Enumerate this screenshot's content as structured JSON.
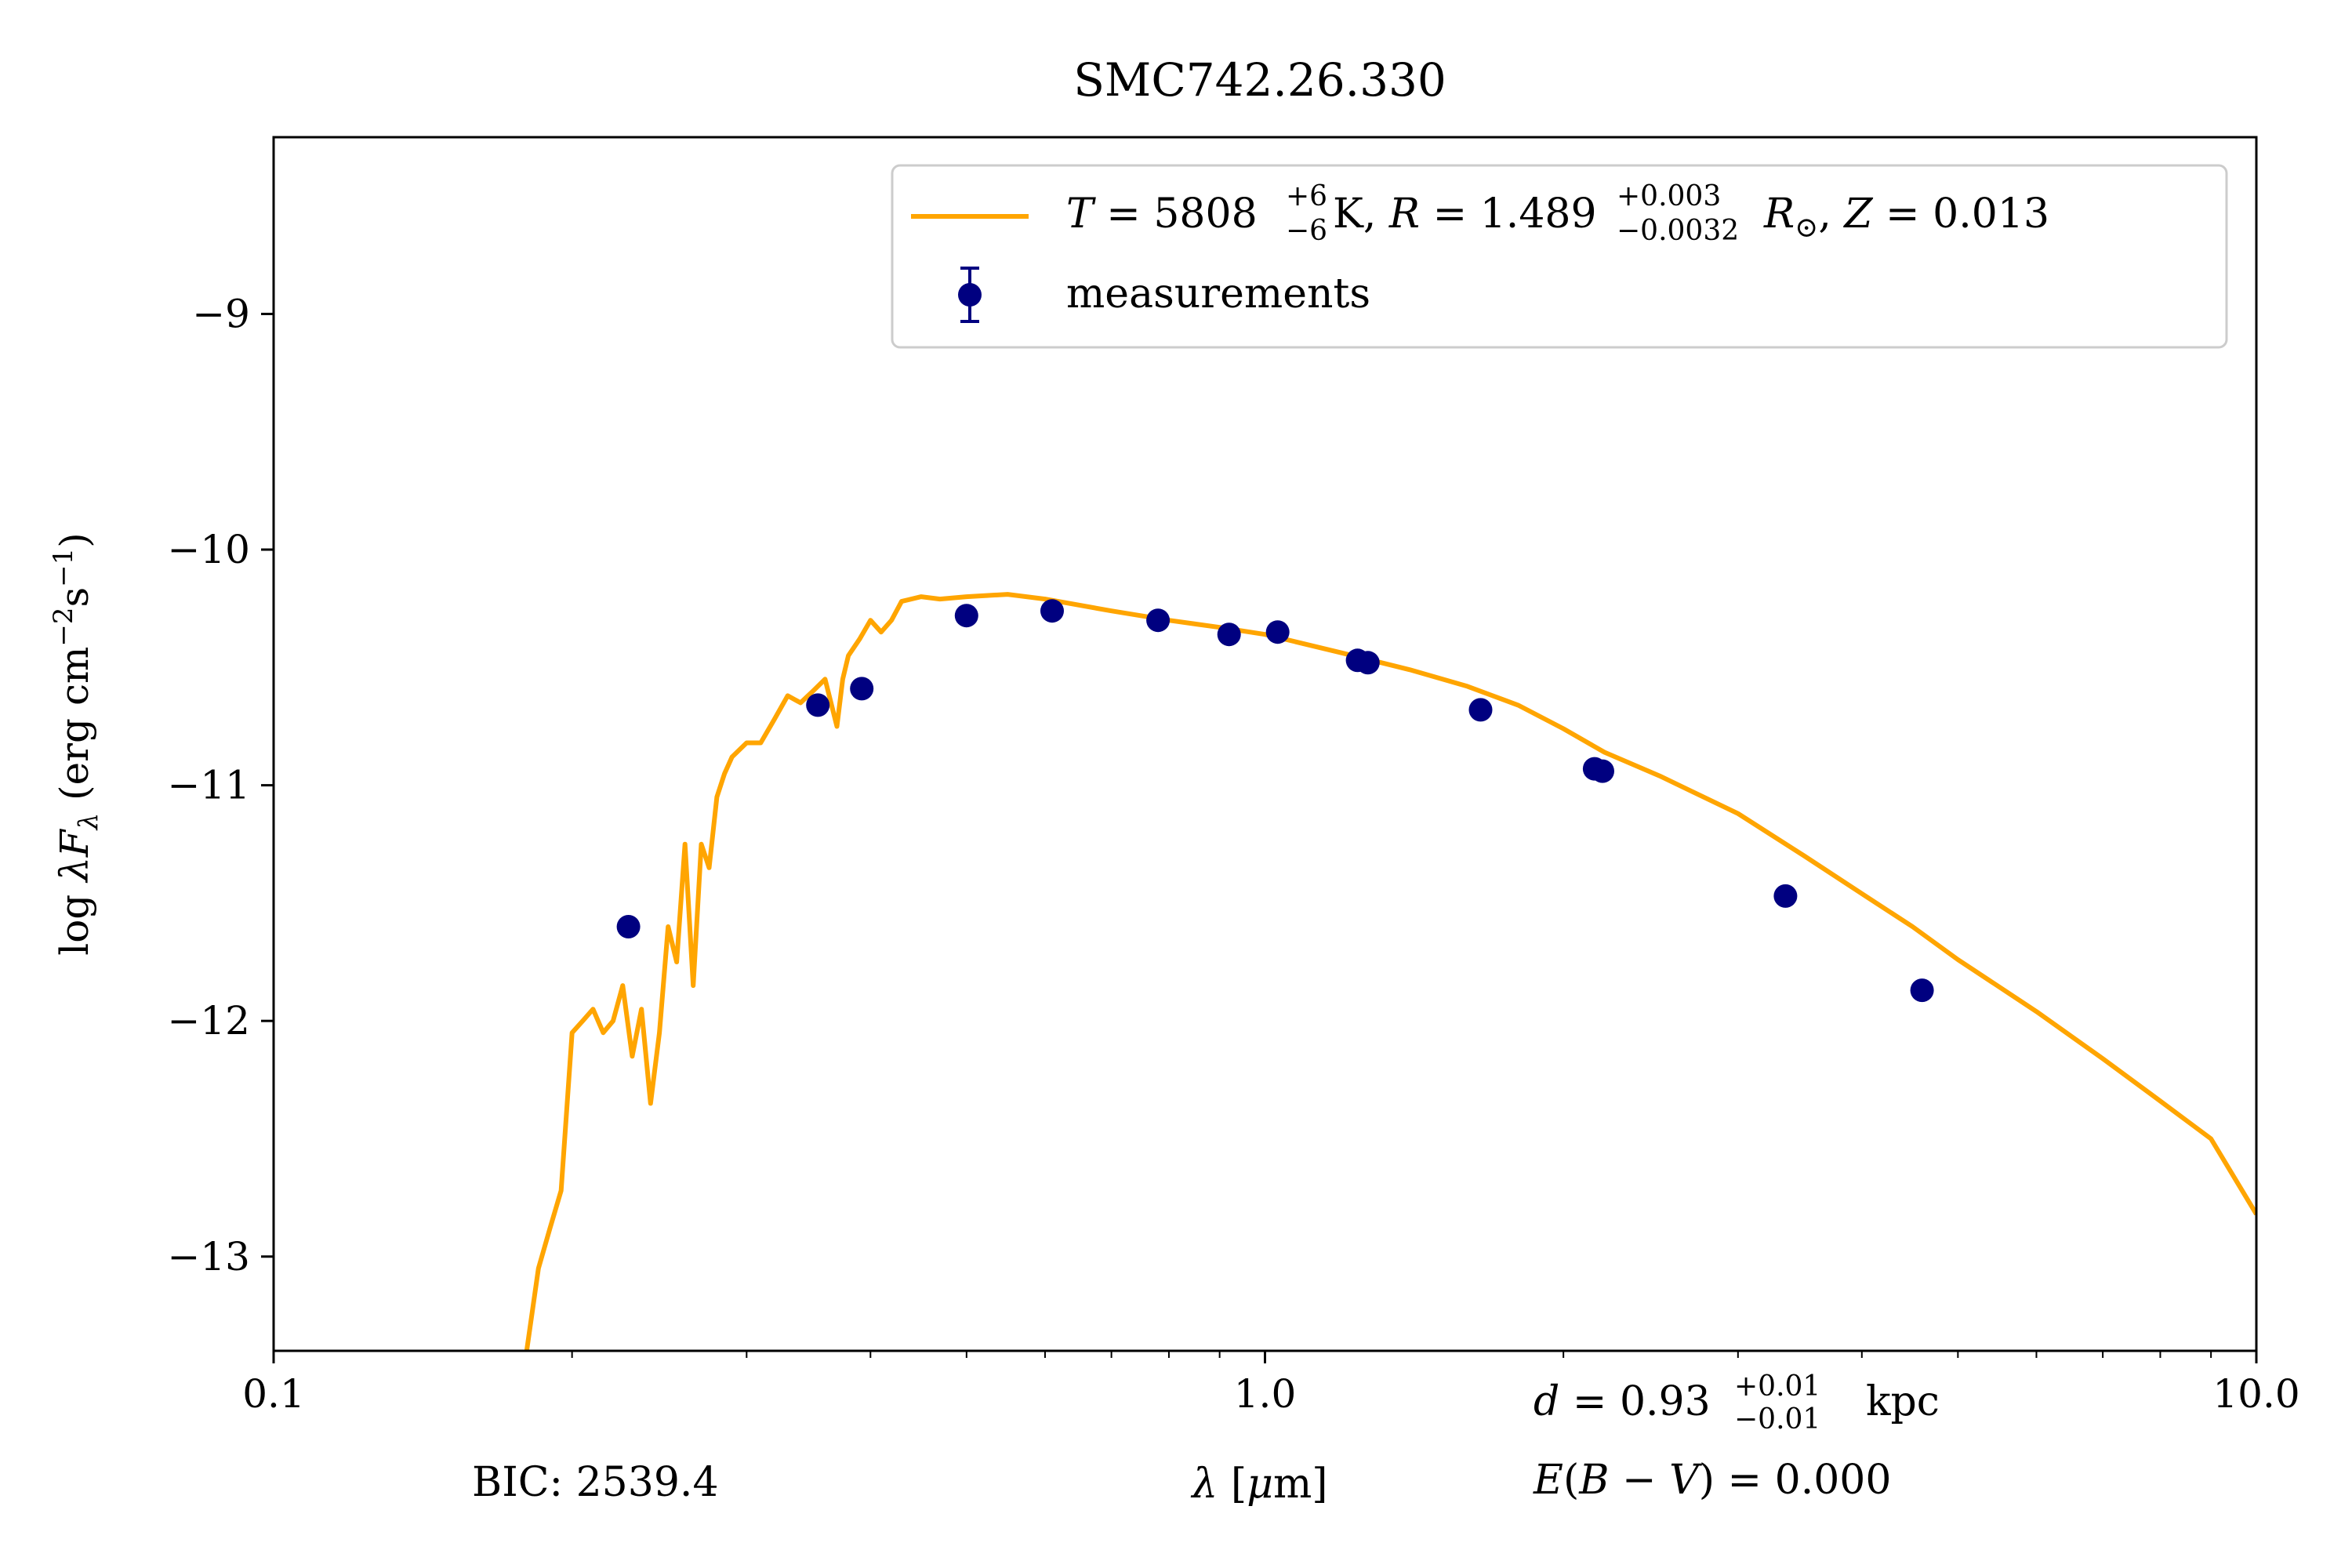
{
  "chart_data": {
    "type": "scatter",
    "title": "SMC742.26.330",
    "xlabel": "λ [μm]",
    "ylabel": "log λF_λ (erg cm⁻²s⁻¹)",
    "xscale": "log",
    "xlim": [
      0.1,
      10.0
    ],
    "ylim": [
      -13.4,
      -8.25
    ],
    "xticks": [
      {
        "value": 0.1,
        "label": "0.1"
      },
      {
        "value": 1.0,
        "label": "1.0"
      },
      {
        "value": 10.0,
        "label": "10.0"
      }
    ],
    "yticks": [
      {
        "value": -9,
        "label": "−9"
      },
      {
        "value": -10,
        "label": "−10"
      },
      {
        "value": -11,
        "label": "−11"
      },
      {
        "value": -12,
        "label": "−12"
      },
      {
        "value": -13,
        "label": "−13"
      }
    ],
    "grid": false,
    "legend_position": "top-right",
    "colors": {
      "model": "#ffa500",
      "measurements": "#000080",
      "axes": "#000000"
    },
    "series": [
      {
        "name": "T = 5808 K, R = 1.489 R⊙, Z = 0.013",
        "legend_label": {
          "T_value": "5808",
          "T_err_plus": "+6",
          "T_err_minus": "−6",
          "R_value": "1.489",
          "R_err_plus": "+0.003",
          "R_err_minus": "−0.0032",
          "Z_value": "0.013"
        },
        "kind": "line",
        "x": [
          0.18,
          0.185,
          0.19,
          0.195,
          0.2,
          0.205,
          0.21,
          0.215,
          0.22,
          0.225,
          0.23,
          0.235,
          0.24,
          0.245,
          0.25,
          0.255,
          0.26,
          0.265,
          0.27,
          0.275,
          0.28,
          0.285,
          0.29,
          0.3,
          0.31,
          0.32,
          0.33,
          0.34,
          0.35,
          0.36,
          0.37,
          0.375,
          0.38,
          0.39,
          0.4,
          0.41,
          0.42,
          0.43,
          0.45,
          0.47,
          0.5,
          0.55,
          0.6,
          0.7,
          0.8,
          0.9,
          1.0,
          1.2,
          1.4,
          1.6,
          1.8,
          2.0,
          2.2,
          2.5,
          3.0,
          3.5,
          4.0,
          4.5,
          5.0,
          6.0,
          7.0,
          8.0,
          9.0,
          10.0
        ],
        "y": [
          -13.4,
          -13.05,
          -12.88,
          -12.72,
          -12.05,
          -12.0,
          -11.95,
          -12.05,
          -12.0,
          -11.85,
          -12.15,
          -11.95,
          -12.35,
          -12.05,
          -11.6,
          -11.75,
          -11.25,
          -11.85,
          -11.25,
          -11.35,
          -11.05,
          -10.95,
          -10.88,
          -10.82,
          -10.82,
          -10.72,
          -10.62,
          -10.65,
          -10.6,
          -10.55,
          -10.75,
          -10.55,
          -10.45,
          -10.38,
          -10.3,
          -10.35,
          -10.3,
          -10.22,
          -10.2,
          -10.21,
          -10.2,
          -10.19,
          -10.21,
          -10.26,
          -10.3,
          -10.33,
          -10.36,
          -10.44,
          -10.51,
          -10.58,
          -10.66,
          -10.76,
          -10.86,
          -10.96,
          -11.12,
          -11.3,
          -11.46,
          -11.6,
          -11.74,
          -11.96,
          -12.16,
          -12.34,
          -12.5,
          -12.82
        ]
      },
      {
        "name": "measurements",
        "kind": "scatter",
        "x": [
          0.228,
          0.354,
          0.392,
          0.5,
          0.61,
          0.78,
          0.92,
          1.03,
          1.24,
          1.27,
          1.65,
          2.15,
          2.19,
          3.35,
          4.6
        ],
        "y": [
          -11.6,
          -10.66,
          -10.59,
          -10.28,
          -10.26,
          -10.3,
          -10.36,
          -10.35,
          -10.47,
          -10.48,
          -10.68,
          -10.93,
          -10.94,
          -11.47,
          -11.87
        ]
      }
    ],
    "annotations": {
      "bic": "BIC: 2539.4",
      "distance": {
        "value": "0.93",
        "err_plus": "+0.01",
        "err_minus": "−0.01",
        "unit": "kpc"
      },
      "ebv": {
        "value": "0.000"
      }
    }
  }
}
